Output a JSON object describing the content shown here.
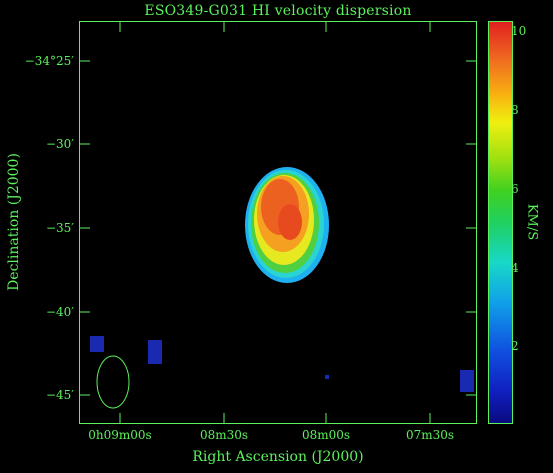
{
  "title": "ESO349-G031  HI velocity dispersion",
  "axes": {
    "xlabel": "Right Ascension (J2000)",
    "ylabel": "Declination (J2000)",
    "y_ticks": [
      "−34°25′",
      "−30′",
      "−35′",
      "−40′",
      "−45′"
    ],
    "x_ticks": [
      "0h09m00s",
      "08m30s",
      "08m00s",
      "07m30s"
    ]
  },
  "colorbar": {
    "unit": "KM/S",
    "ticks": [
      "10",
      "8",
      "6",
      "4",
      "2"
    ]
  },
  "colors": {
    "axis": "#5cf25c",
    "background": "#000000",
    "beam": "#5cf25c"
  }
}
